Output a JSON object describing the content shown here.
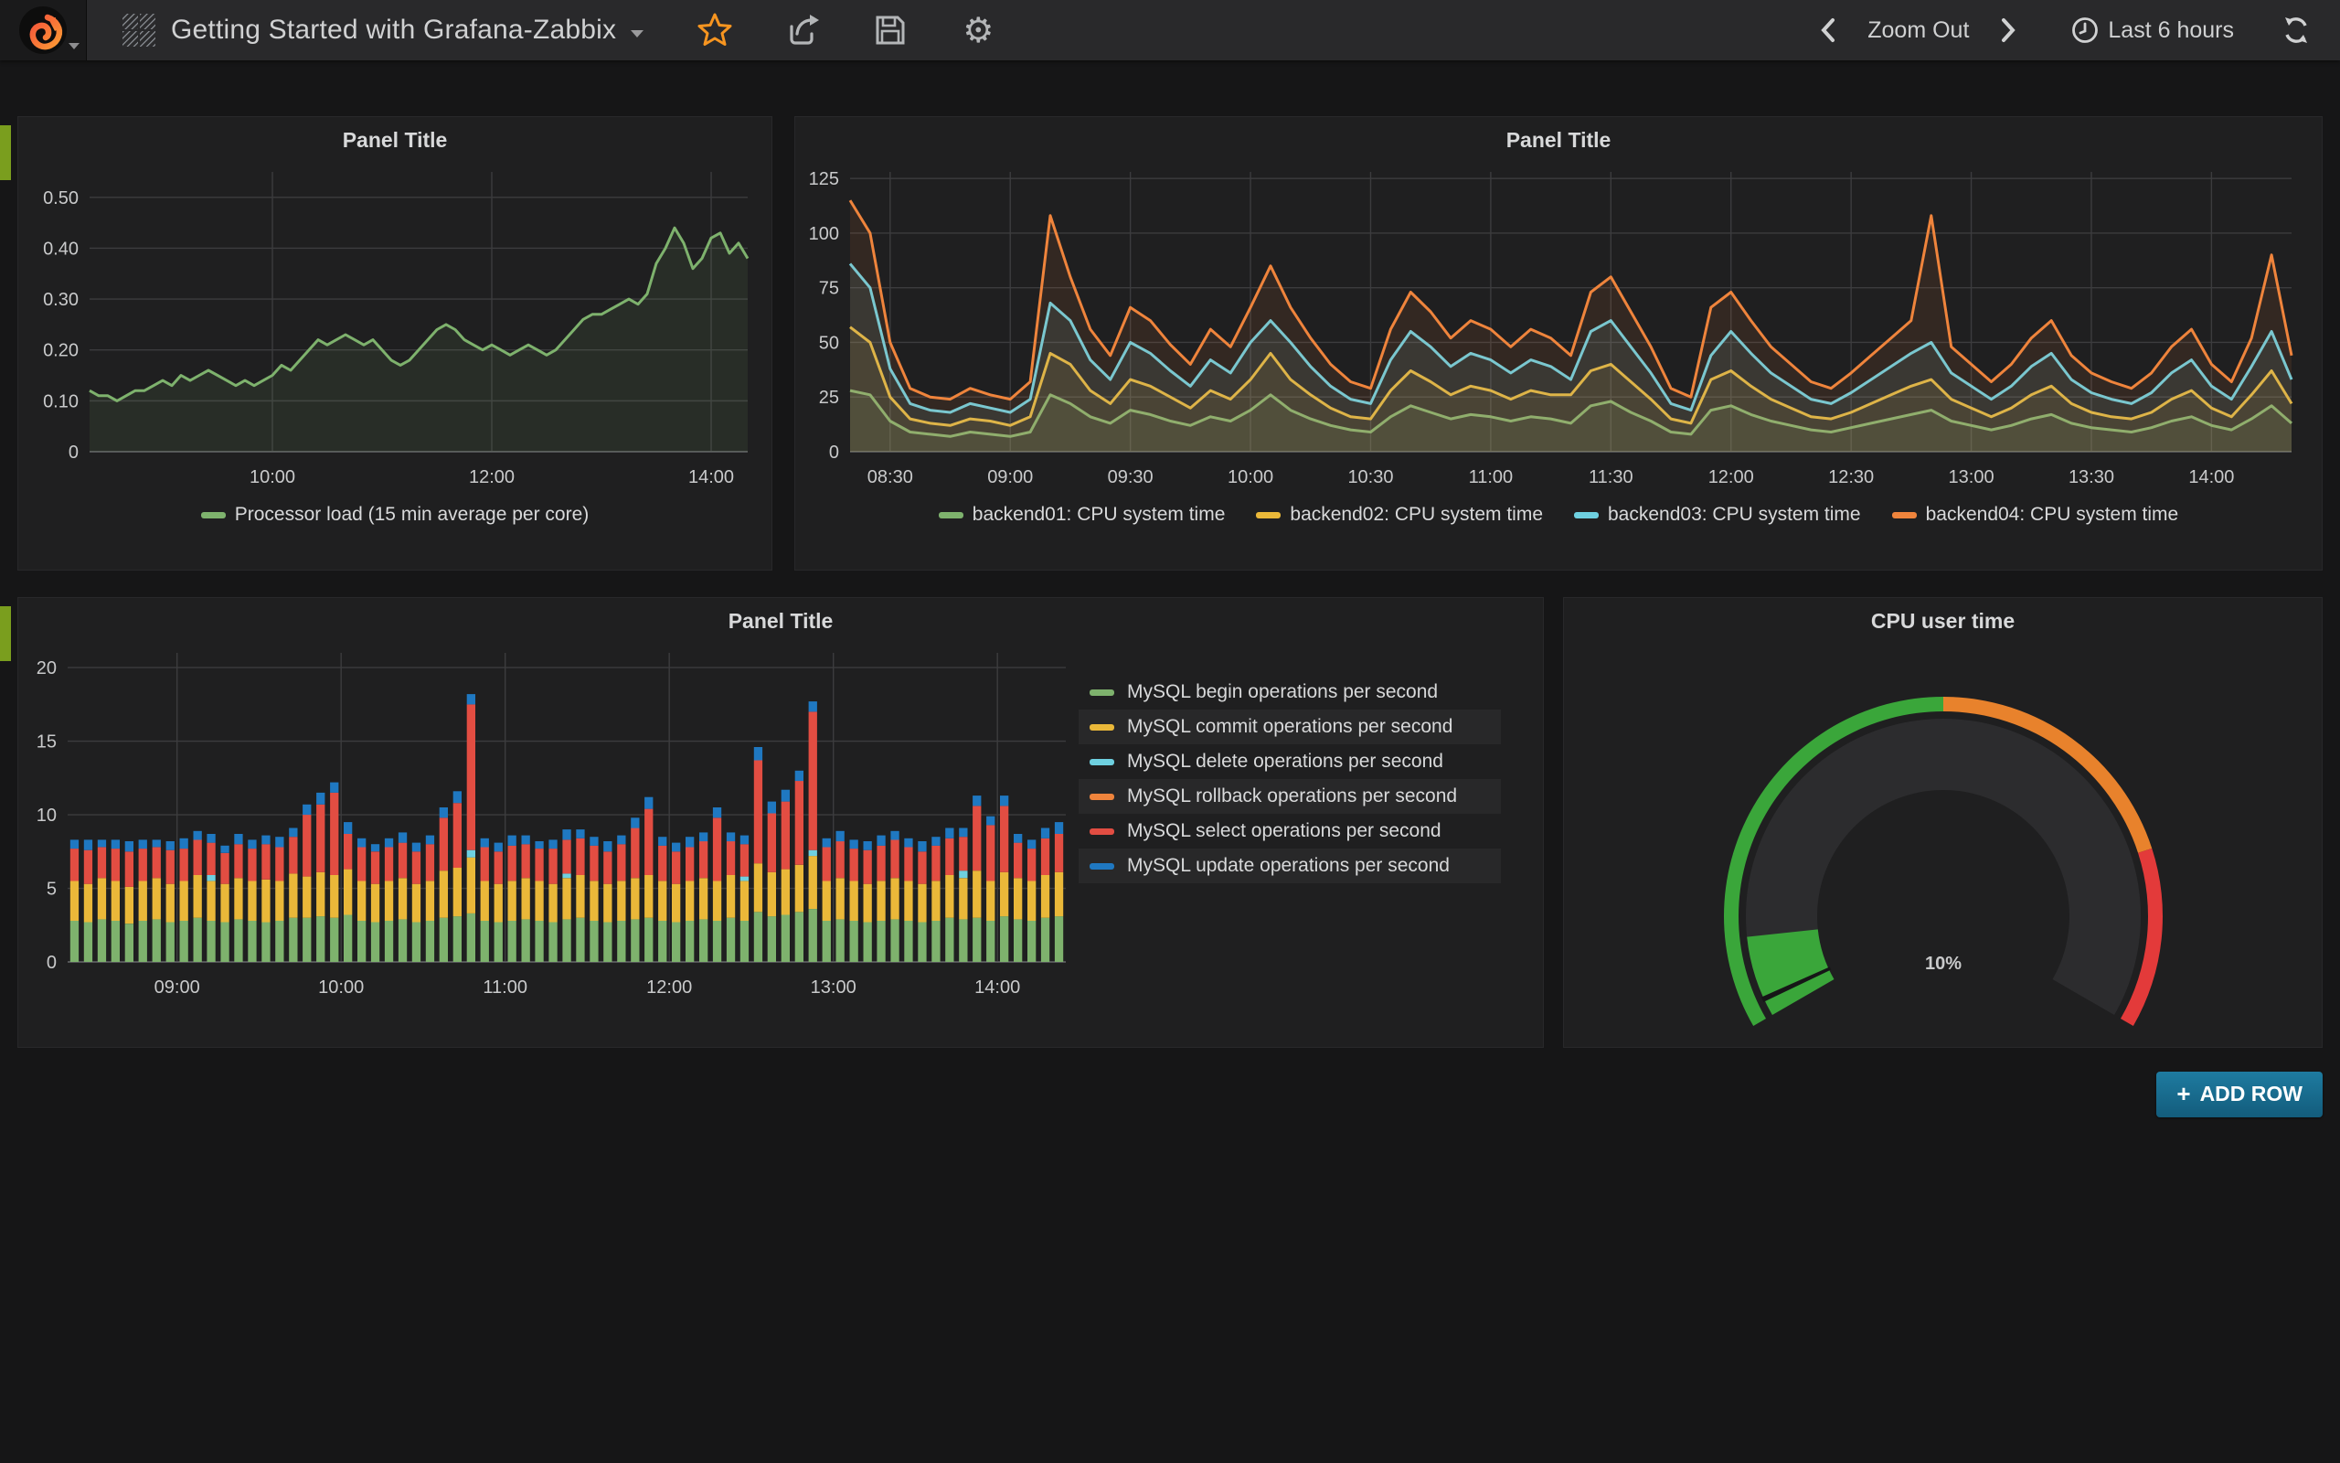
{
  "navbar": {
    "title": "Getting Started with Grafana-Zabbix",
    "zoom_out_label": "Zoom Out",
    "time_range_label": "Last 6 hours",
    "icons": {
      "gear_glyph": "⚙"
    }
  },
  "add_row": {
    "plus": "+",
    "label": "ADD ROW"
  },
  "colors": {
    "green": "#7EB26D",
    "yellow": "#EAB839",
    "cyan": "#6ED0E0",
    "orange": "#EF843C",
    "red": "#E24D42",
    "blue": "#1F78C1",
    "accent_orange": "#F79520",
    "row_tab_green": "#7A9E1E"
  },
  "chart_data": [
    {
      "id": "processor_load",
      "type": "line",
      "title": "Panel Title",
      "x_start_hour": 8.3333,
      "x_step_minutes": 5,
      "xlim": [
        8.3333,
        14.3333
      ],
      "ylim": [
        0,
        0.55
      ],
      "yticks": [
        {
          "v": 0,
          "label": "0"
        },
        {
          "v": 0.1,
          "label": "0.10"
        },
        {
          "v": 0.2,
          "label": "0.20"
        },
        {
          "v": 0.3,
          "label": "0.30"
        },
        {
          "v": 0.4,
          "label": "0.40"
        },
        {
          "v": 0.5,
          "label": "0.50"
        }
      ],
      "xticks": [
        {
          "v": 10,
          "label": "10:00"
        },
        {
          "v": 12,
          "label": "12:00"
        },
        {
          "v": 14,
          "label": "14:00"
        }
      ],
      "grid": true,
      "legend_position": "bottom",
      "series": [
        {
          "name": "Processor load (15 min average per core)",
          "color": "#7EB26D",
          "values": [
            0.12,
            0.11,
            0.11,
            0.1,
            0.11,
            0.12,
            0.12,
            0.13,
            0.14,
            0.13,
            0.15,
            0.14,
            0.15,
            0.16,
            0.15,
            0.14,
            0.13,
            0.14,
            0.13,
            0.14,
            0.15,
            0.17,
            0.16,
            0.18,
            0.2,
            0.22,
            0.21,
            0.22,
            0.23,
            0.22,
            0.21,
            0.22,
            0.2,
            0.18,
            0.17,
            0.18,
            0.2,
            0.22,
            0.24,
            0.25,
            0.24,
            0.22,
            0.21,
            0.2,
            0.21,
            0.2,
            0.19,
            0.2,
            0.21,
            0.2,
            0.19,
            0.2,
            0.22,
            0.24,
            0.26,
            0.27,
            0.27,
            0.28,
            0.29,
            0.3,
            0.29,
            0.31,
            0.37,
            0.4,
            0.44,
            0.41,
            0.36,
            0.38,
            0.42,
            0.43,
            0.39,
            0.41,
            0.38
          ]
        }
      ]
    },
    {
      "id": "backend_cpu_system",
      "type": "line",
      "title": "Panel Title",
      "x_start_hour": 8.3333,
      "x_step_minutes": 5,
      "xlim": [
        8.3333,
        14.3333
      ],
      "ylim": [
        0,
        128
      ],
      "yticks": [
        {
          "v": 0,
          "label": "0"
        },
        {
          "v": 25,
          "label": "25"
        },
        {
          "v": 50,
          "label": "50"
        },
        {
          "v": 75,
          "label": "75"
        },
        {
          "v": 100,
          "label": "100"
        },
        {
          "v": 125,
          "label": "125"
        }
      ],
      "xticks": [
        {
          "v": 8.5,
          "label": "08:30"
        },
        {
          "v": 9,
          "label": "09:00"
        },
        {
          "v": 9.5,
          "label": "09:30"
        },
        {
          "v": 10,
          "label": "10:00"
        },
        {
          "v": 10.5,
          "label": "10:30"
        },
        {
          "v": 11,
          "label": "11:00"
        },
        {
          "v": 11.5,
          "label": "11:30"
        },
        {
          "v": 12,
          "label": "12:00"
        },
        {
          "v": 12.5,
          "label": "12:30"
        },
        {
          "v": 13,
          "label": "13:00"
        },
        {
          "v": 13.5,
          "label": "13:30"
        },
        {
          "v": 14,
          "label": "14:00"
        }
      ],
      "grid": true,
      "legend_position": "bottom",
      "series": [
        {
          "name": "backend01: CPU system time",
          "color": "#7EB26D",
          "values": [
            28,
            26,
            14,
            9,
            8,
            7,
            9,
            8,
            7,
            9,
            26,
            22,
            16,
            13,
            19,
            17,
            14,
            12,
            16,
            14,
            19,
            26,
            19,
            15,
            12,
            10,
            9,
            16,
            21,
            18,
            15,
            17,
            16,
            14,
            16,
            15,
            13,
            21,
            23,
            18,
            14,
            9,
            8,
            19,
            21,
            17,
            14,
            12,
            10,
            9,
            11,
            13,
            15,
            17,
            19,
            14,
            12,
            10,
            12,
            15,
            17,
            13,
            11,
            10,
            9,
            11,
            14,
            16,
            12,
            10,
            15,
            21,
            13
          ]
        },
        {
          "name": "backend02: CPU system time",
          "color": "#EAB839",
          "values": [
            57,
            50,
            25,
            15,
            13,
            12,
            15,
            14,
            12,
            16,
            45,
            40,
            28,
            22,
            33,
            30,
            25,
            20,
            28,
            24,
            33,
            45,
            33,
            26,
            20,
            16,
            15,
            28,
            37,
            32,
            26,
            30,
            28,
            24,
            28,
            26,
            26,
            37,
            40,
            32,
            24,
            15,
            13,
            33,
            37,
            30,
            24,
            20,
            16,
            15,
            18,
            22,
            26,
            30,
            33,
            24,
            20,
            16,
            20,
            26,
            30,
            22,
            18,
            16,
            15,
            18,
            24,
            28,
            20,
            16,
            26,
            37,
            22
          ]
        },
        {
          "name": "backend03: CPU system time",
          "color": "#6ED0E0",
          "values": [
            86,
            75,
            38,
            22,
            19,
            18,
            22,
            20,
            18,
            24,
            68,
            60,
            42,
            33,
            50,
            45,
            37,
            30,
            42,
            36,
            50,
            60,
            50,
            39,
            30,
            24,
            22,
            42,
            55,
            48,
            39,
            45,
            42,
            36,
            42,
            39,
            33,
            55,
            60,
            48,
            36,
            22,
            19,
            44,
            55,
            45,
            36,
            30,
            24,
            22,
            27,
            33,
            39,
            45,
            50,
            36,
            30,
            24,
            30,
            39,
            45,
            33,
            27,
            24,
            22,
            27,
            36,
            42,
            30,
            24,
            39,
            55,
            33
          ]
        },
        {
          "name": "backend04: CPU system time",
          "color": "#EF843C",
          "values": [
            115,
            100,
            50,
            29,
            25,
            24,
            29,
            26,
            24,
            32,
            108,
            80,
            56,
            44,
            66,
            60,
            49,
            40,
            56,
            48,
            66,
            85,
            66,
            52,
            40,
            32,
            29,
            56,
            73,
            64,
            52,
            60,
            56,
            48,
            56,
            52,
            44,
            73,
            80,
            64,
            48,
            29,
            25,
            66,
            73,
            60,
            48,
            40,
            32,
            29,
            36,
            44,
            52,
            60,
            108,
            48,
            40,
            32,
            40,
            52,
            60,
            44,
            36,
            32,
            29,
            36,
            48,
            56,
            40,
            32,
            52,
            90,
            44
          ]
        }
      ]
    },
    {
      "id": "mysql_operations",
      "type": "stacked_bar",
      "title": "Panel Title",
      "x_start_hour": 8.3333,
      "x_step_minutes": 5,
      "xlim": [
        8.3333,
        14.4167
      ],
      "ylim": [
        0,
        21
      ],
      "yticks": [
        {
          "v": 0,
          "label": "0"
        },
        {
          "v": 5,
          "label": "5"
        },
        {
          "v": 10,
          "label": "10"
        },
        {
          "v": 15,
          "label": "15"
        },
        {
          "v": 20,
          "label": "20"
        }
      ],
      "xticks": [
        {
          "v": 9,
          "label": "09:00"
        },
        {
          "v": 10,
          "label": "10:00"
        },
        {
          "v": 11,
          "label": "11:00"
        },
        {
          "v": 12,
          "label": "12:00"
        },
        {
          "v": 13,
          "label": "13:00"
        },
        {
          "v": 14,
          "label": "14:00"
        }
      ],
      "grid": true,
      "legend_position": "right",
      "series": [
        {
          "name": "MySQL begin operations per second",
          "color": "#7EB26D",
          "values": [
            2.8,
            2.7,
            2.9,
            2.8,
            2.6,
            2.8,
            2.9,
            2.7,
            2.8,
            3.0,
            2.8,
            2.7,
            2.9,
            2.8,
            2.7,
            2.8,
            3.0,
            3.0,
            3.1,
            3.0,
            3.2,
            2.8,
            2.7,
            2.8,
            2.9,
            2.7,
            2.8,
            3.0,
            3.1,
            3.3,
            2.8,
            2.7,
            2.8,
            2.9,
            2.8,
            2.7,
            2.9,
            3.0,
            2.8,
            2.7,
            2.8,
            2.9,
            3.0,
            2.8,
            2.7,
            2.8,
            2.9,
            2.8,
            3.0,
            2.8,
            3.4,
            3.1,
            3.2,
            3.4,
            3.6,
            2.8,
            2.9,
            2.8,
            2.7,
            2.8,
            2.9,
            2.8,
            2.7,
            2.8,
            3.0,
            2.9,
            3.0,
            2.8,
            3.1,
            2.9,
            2.8,
            3.0,
            3.1
          ]
        },
        {
          "name": "MySQL commit operations per second",
          "color": "#EAB839",
          "values": [
            2.7,
            2.6,
            2.8,
            2.7,
            2.5,
            2.7,
            2.8,
            2.6,
            2.7,
            2.9,
            2.7,
            2.6,
            2.8,
            2.7,
            2.9,
            2.7,
            3.0,
            2.8,
            3.0,
            2.9,
            3.1,
            2.7,
            2.6,
            2.7,
            2.8,
            2.6,
            2.7,
            3.2,
            3.3,
            3.8,
            2.7,
            2.6,
            2.7,
            2.8,
            2.7,
            2.6,
            2.8,
            2.9,
            2.7,
            2.6,
            2.7,
            2.8,
            2.9,
            2.7,
            2.6,
            2.7,
            2.8,
            2.7,
            2.9,
            2.7,
            3.3,
            3.0,
            3.1,
            3.2,
            3.6,
            2.7,
            2.8,
            2.7,
            2.6,
            2.7,
            2.8,
            2.7,
            2.6,
            2.7,
            2.9,
            2.8,
            3.2,
            2.7,
            3.0,
            2.8,
            2.7,
            2.9,
            3.0
          ]
        },
        {
          "name": "MySQL delete operations per second",
          "color": "#6ED0E0",
          "values": [
            0,
            0,
            0,
            0,
            0,
            0,
            0,
            0,
            0,
            0,
            0.4,
            0,
            0,
            0,
            0,
            0,
            0,
            0,
            0,
            0,
            0,
            0,
            0,
            0,
            0,
            0,
            0,
            0,
            0,
            0.5,
            0,
            0,
            0,
            0,
            0,
            0,
            0.3,
            0,
            0,
            0,
            0,
            0,
            0,
            0,
            0,
            0,
            0,
            0,
            0,
            0.3,
            0,
            0,
            0,
            0,
            0.4,
            0,
            0,
            0,
            0,
            0,
            0,
            0,
            0,
            0,
            0,
            0.5,
            0,
            0,
            0,
            0,
            0,
            0,
            0
          ]
        },
        {
          "name": "MySQL rollback operations per second",
          "color": "#EF843C",
          "values": [
            0,
            0,
            0,
            0,
            0,
            0,
            0,
            0,
            0,
            0,
            0,
            0,
            0,
            0,
            0,
            0,
            0,
            0,
            0,
            0,
            0,
            0,
            0,
            0,
            0,
            0,
            0,
            0,
            0,
            0,
            0,
            0,
            0,
            0,
            0,
            0,
            0,
            0,
            0,
            0,
            0,
            0,
            0,
            0,
            0,
            0,
            0,
            0,
            0,
            0,
            0,
            0,
            0,
            0,
            0,
            0,
            0,
            0,
            0,
            0,
            0,
            0,
            0,
            0,
            0,
            0,
            0,
            0,
            0,
            0,
            0,
            0,
            0
          ]
        },
        {
          "name": "MySQL select operations per second",
          "color": "#E24D42",
          "values": [
            2.2,
            2.3,
            2.1,
            2.2,
            2.4,
            2.2,
            2.1,
            2.3,
            2.2,
            2.4,
            2.2,
            2.1,
            2.3,
            2.2,
            2.4,
            2.3,
            2.5,
            4.2,
            4.6,
            5.6,
            2.4,
            2.3,
            2.2,
            2.3,
            2.4,
            2.2,
            2.5,
            3.6,
            4.4,
            9.9,
            2.3,
            2.2,
            2.4,
            2.3,
            2.2,
            2.4,
            2.3,
            2.5,
            2.4,
            2.2,
            2.5,
            3.4,
            4.5,
            2.4,
            2.2,
            2.3,
            2.5,
            4.3,
            2.3,
            2.2,
            7.0,
            4.0,
            4.6,
            5.7,
            9.4,
            2.3,
            2.5,
            2.2,
            2.3,
            2.4,
            2.6,
            2.3,
            2.2,
            2.4,
            2.5,
            2.3,
            4.4,
            3.8,
            4.5,
            2.4,
            2.2,
            2.5,
            2.6
          ]
        },
        {
          "name": "MySQL update operations per second",
          "color": "#1F78C1",
          "values": [
            0.6,
            0.7,
            0.5,
            0.6,
            0.7,
            0.6,
            0.5,
            0.6,
            0.7,
            0.6,
            0.6,
            0.5,
            0.7,
            0.6,
            0.6,
            0.7,
            0.6,
            0.7,
            0.8,
            0.7,
            0.8,
            0.6,
            0.5,
            0.6,
            0.7,
            0.6,
            0.6,
            0.7,
            0.8,
            0.7,
            0.6,
            0.6,
            0.7,
            0.6,
            0.5,
            0.6,
            0.7,
            0.6,
            0.6,
            0.7,
            0.6,
            0.7,
            0.8,
            0.6,
            0.6,
            0.7,
            0.6,
            0.7,
            0.6,
            0.6,
            0.9,
            0.8,
            0.8,
            0.7,
            0.7,
            0.6,
            0.7,
            0.6,
            0.6,
            0.7,
            0.6,
            0.6,
            0.7,
            0.6,
            0.7,
            0.6,
            0.7,
            0.6,
            0.7,
            0.6,
            0.6,
            0.7,
            0.8
          ]
        }
      ]
    },
    {
      "id": "cpu_user_time",
      "type": "gauge",
      "title": "CPU user time",
      "value": 10,
      "value_label": "10%",
      "min": 0,
      "max": 100,
      "thresholds": [
        {
          "from": 0,
          "to": 50,
          "color": "#3AA63A"
        },
        {
          "from": 50,
          "to": 80,
          "color": "#E8822C"
        },
        {
          "from": 80,
          "to": 100,
          "color": "#E33A3A"
        }
      ]
    }
  ]
}
